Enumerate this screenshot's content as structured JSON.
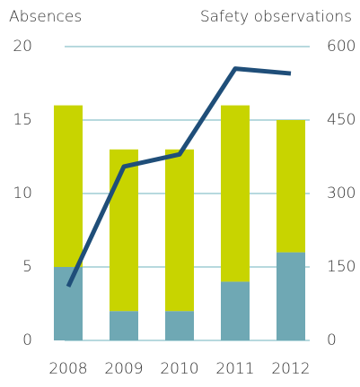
{
  "chart_data": {
    "type": "bar",
    "ylabel": "Absences",
    "y2label": "Safety observations",
    "categories": [
      "2008",
      "2009",
      "2010",
      "2011",
      "2012"
    ],
    "series": [
      {
        "color": "#6fa8b4",
        "values": [
          5,
          2,
          2,
          4,
          6
        ]
      },
      {
        "color": "#c8d400",
        "values": [
          11,
          11,
          11,
          12,
          9
        ]
      },
      {
        "type": "line",
        "axis": "y2",
        "color": "#1f4e79",
        "values": [
          110,
          355,
          380,
          555,
          545
        ]
      }
    ],
    "stacked": true,
    "ylim": [
      0,
      20
    ],
    "yticks": [
      0,
      5,
      10,
      15,
      20
    ],
    "y2lim": [
      0,
      600
    ],
    "y2ticks": [
      0,
      150,
      300,
      450,
      600
    ],
    "grid": true
  }
}
